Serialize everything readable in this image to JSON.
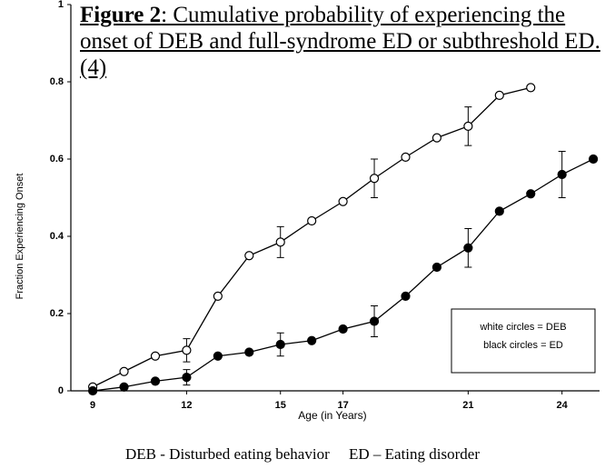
{
  "chart_data": {
    "type": "line",
    "title_label": "Figure 2",
    "title": ": Cumulative probability of experiencing the onset of DEB and full-syndrome ED or subthreshold ED. (4)",
    "x_label": "Age (in Years)",
    "y_label": "Fraction Experiencing Onset",
    "footnote": "DEB - Disturbed eating behavior     ED – Eating disorder",
    "xlim": [
      8.3,
      25.2
    ],
    "xticks": [
      9,
      12,
      15,
      17,
      21,
      24
    ],
    "ylim": [
      0,
      1
    ],
    "yticks": [
      0,
      0.2,
      0.4,
      0.6,
      0.8,
      1
    ],
    "series": [
      {
        "name": "white circles = DEB",
        "color": "#ffffff",
        "x": [
          9,
          10,
          11,
          12,
          13,
          14,
          15,
          16,
          17,
          18,
          19,
          20,
          21,
          22,
          23
        ],
        "values": [
          0.01,
          0.05,
          0.09,
          0.105,
          0.245,
          0.35,
          0.385,
          0.44,
          0.49,
          0.55,
          0.605,
          0.655,
          0.685,
          0.765,
          0.785
        ],
        "errors": [
          null,
          null,
          null,
          0.03,
          null,
          null,
          0.04,
          null,
          null,
          0.05,
          null,
          null,
          0.05,
          null,
          null
        ]
      },
      {
        "name": "black circles = ED",
        "color": "#000000",
        "x": [
          9,
          10,
          11,
          12,
          13,
          14,
          15,
          16,
          17,
          18,
          19,
          20,
          21,
          22,
          23,
          24,
          25
        ],
        "values": [
          0,
          0.01,
          0.025,
          0.035,
          0.09,
          0.1,
          0.12,
          0.13,
          0.16,
          0.18,
          0.245,
          0.32,
          0.37,
          0.465,
          0.51,
          0.56,
          0.6
        ],
        "errors": [
          null,
          null,
          null,
          0.02,
          null,
          null,
          0.03,
          null,
          null,
          0.04,
          null,
          null,
          0.05,
          null,
          null,
          0.06,
          null
        ]
      }
    ]
  }
}
